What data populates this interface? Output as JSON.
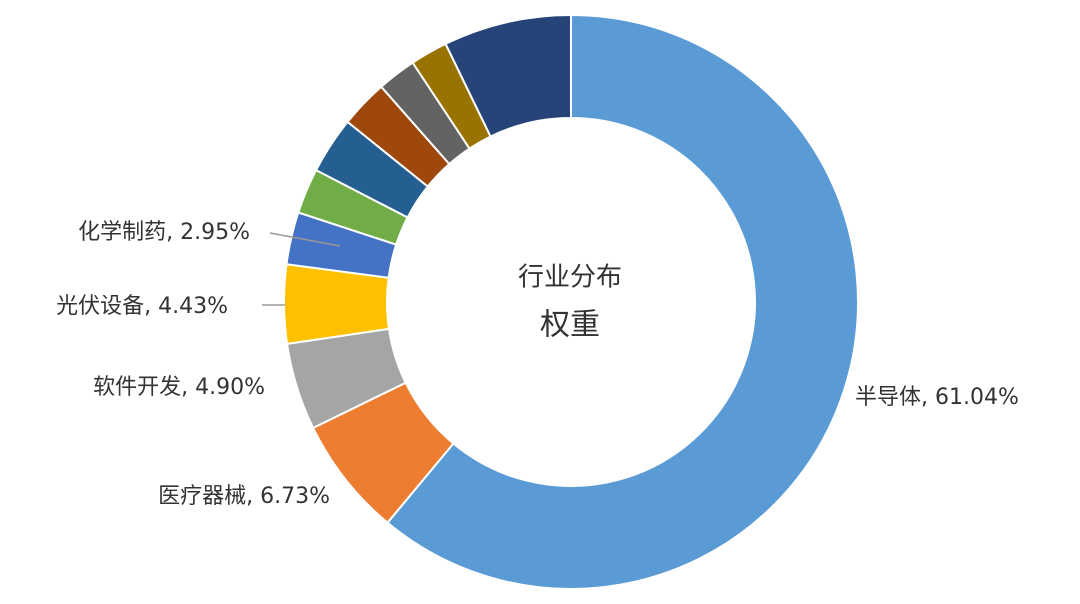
{
  "chart_data": {
    "type": "donut",
    "title_lines": [
      "行业分布",
      "权重"
    ],
    "values": [
      61.04,
      6.73,
      4.9,
      4.43,
      2.95,
      2.55,
      3.2,
      2.7,
      2.2,
      2.1,
      7.2
    ],
    "value_labels": [
      "半导体, 61.04%",
      "医疗器械, 6.73%",
      "软件开发, 4.90%",
      "光伏设备, 4.43%",
      "化学制药, 2.95%",
      null,
      null,
      null,
      null,
      null,
      null
    ],
    "colors": [
      "#5b9bd5",
      "#ed7d31",
      "#a5a5a5",
      "#ffc000",
      "#4472c4",
      "#70ad47",
      "#255e91",
      "#9e480e",
      "#636363",
      "#997300",
      "#264478"
    ]
  }
}
